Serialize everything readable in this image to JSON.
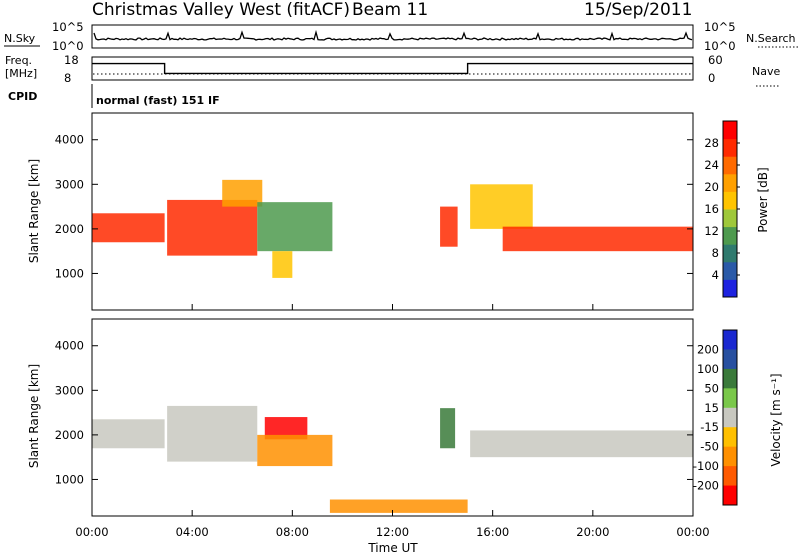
{
  "header": {
    "title": "Christmas Valley West (fitACF)",
    "beam": "Beam 11",
    "date": "15/Sep/2011"
  },
  "panel_labels": {
    "nsky": "N.Sky",
    "nsearch": "N.Search",
    "freq": "Freq.",
    "freq_unit": "[MHz]",
    "nave": "Nave",
    "cpid": "CPID",
    "mode": "normal (fast) 151 IF"
  },
  "axis_titles": {
    "y": "Slant Range [km]",
    "x": "Time UT",
    "power": "Power [dB]",
    "velocity": "Velocity [m s⁻¹]"
  },
  "colors": {
    "power": [
      "#1e23e0",
      "#2a5aa8",
      "#2f7a6e",
      "#4e9a4e",
      "#9fc83a",
      "#ffc400",
      "#ffa000",
      "#ff6a00",
      "#ff2a00",
      "#ff0000"
    ],
    "velocity": [
      "#1a28d0",
      "#2850a0",
      "#3a7a3a",
      "#7ac84a",
      "#c8c8c0",
      "#ffc000",
      "#ff9000",
      "#ff5a00",
      "#ff0000"
    ]
  },
  "chart_data": [
    {
      "type": "line",
      "name": "nsky-nsearch",
      "y_ticks": [
        "10^5",
        "10^0"
      ],
      "right_ticks": [
        "10^5",
        "10^0"
      ]
    },
    {
      "type": "line",
      "name": "freq-nave",
      "y_ticks": [
        18,
        8
      ],
      "right_ticks": [
        60,
        0
      ],
      "freq_steps": [
        {
          "t": 0.0,
          "f": 16
        },
        {
          "t": 2.9,
          "f": 10
        },
        {
          "t": 15.0,
          "f": 16
        },
        {
          "t": 24.0,
          "f": 16
        }
      ]
    },
    {
      "type": "heatmap",
      "name": "power",
      "x_ticks": [
        "00:00",
        "04:00",
        "08:00",
        "12:00",
        "16:00",
        "20:00",
        "00:00"
      ],
      "x_range": [
        0,
        24
      ],
      "y_range": [
        180,
        4600
      ],
      "y_ticks": [
        1000,
        2000,
        3000,
        4000
      ],
      "colorbar_ticks": [
        4,
        8,
        12,
        16,
        20,
        24,
        28
      ],
      "colorbar_range": [
        0,
        32
      ],
      "regions": [
        {
          "t0": 0.0,
          "t1": 2.9,
          "r_top": 2350,
          "r_bot": 1700,
          "v": 26
        },
        {
          "t0": 3.0,
          "t1": 6.6,
          "r_top": 2650,
          "r_bot": 1400,
          "v": 27
        },
        {
          "t0": 5.2,
          "t1": 6.8,
          "r_top": 3100,
          "r_bot": 2500,
          "v": 22
        },
        {
          "t0": 6.6,
          "t1": 9.6,
          "r_top": 2600,
          "r_bot": 1500,
          "v": 12
        },
        {
          "t0": 7.2,
          "t1": 8.0,
          "r_top": 1500,
          "r_bot": 900,
          "v": 18
        },
        {
          "t0": 13.9,
          "t1": 14.6,
          "r_top": 2500,
          "r_bot": 1600,
          "v": 27
        },
        {
          "t0": 15.1,
          "t1": 17.6,
          "r_top": 3000,
          "r_bot": 2000,
          "v": 16
        },
        {
          "t0": 16.4,
          "t1": 24.0,
          "r_top": 2050,
          "r_bot": 1500,
          "v": 28
        }
      ]
    },
    {
      "type": "heatmap",
      "name": "velocity",
      "x_ticks": [
        "00:00",
        "04:00",
        "08:00",
        "12:00",
        "16:00",
        "20:00",
        "00:00"
      ],
      "x_range": [
        0,
        24
      ],
      "y_range": [
        180,
        4600
      ],
      "y_ticks": [
        1000,
        2000,
        3000,
        4000
      ],
      "colorbar_ticks": [
        200,
        100,
        50,
        15,
        -15,
        -50,
        -100,
        -200
      ],
      "regions": [
        {
          "t0": 0.0,
          "t1": 2.9,
          "r_top": 2350,
          "r_bot": 1700,
          "v": 0
        },
        {
          "t0": 3.0,
          "t1": 6.6,
          "r_top": 2650,
          "r_bot": 1400,
          "v": 0
        },
        {
          "t0": 6.9,
          "t1": 8.6,
          "r_top": 2400,
          "r_bot": 1900,
          "v": -200
        },
        {
          "t0": 6.6,
          "t1": 9.6,
          "r_top": 2000,
          "r_bot": 1300,
          "v": -50
        },
        {
          "t0": 13.9,
          "t1": 14.5,
          "r_top": 2600,
          "r_bot": 1700,
          "v": 50
        },
        {
          "t0": 15.1,
          "t1": 24.0,
          "r_top": 2100,
          "r_bot": 1500,
          "v": 0
        },
        {
          "t0": 9.5,
          "t1": 15.0,
          "r_top": 550,
          "r_bot": 250,
          "v": -50
        }
      ]
    }
  ]
}
